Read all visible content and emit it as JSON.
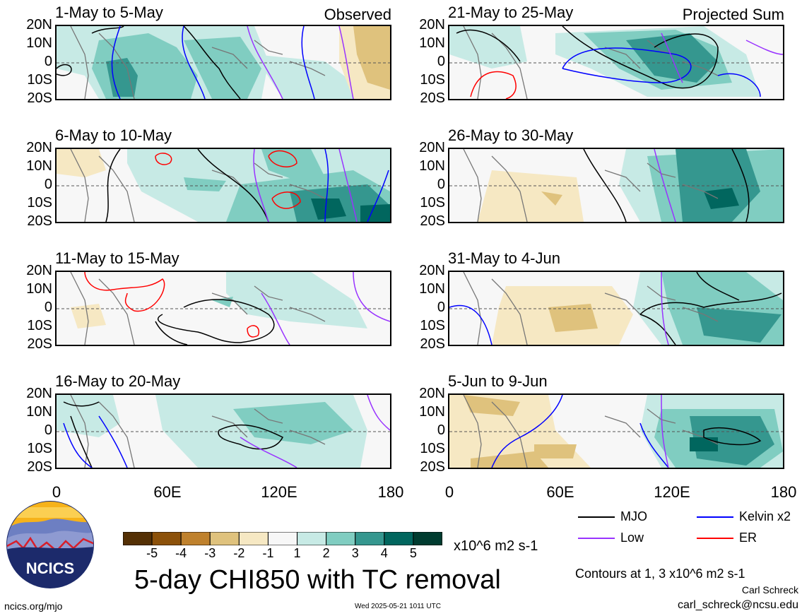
{
  "panels_left": [
    {
      "title": "1-May to 5-May",
      "tag": "Observed"
    },
    {
      "title": "6-May to 10-May",
      "tag": ""
    },
    {
      "title": "11-May to 15-May",
      "tag": ""
    },
    {
      "title": "16-May to 20-May",
      "tag": ""
    }
  ],
  "panels_right": [
    {
      "title": "21-May to 25-May",
      "tag": "Projected Sum"
    },
    {
      "title": "26-May to 30-May",
      "tag": ""
    },
    {
      "title": "31-May to 4-Jun",
      "tag": ""
    },
    {
      "title": "5-Jun to 9-Jun",
      "tag": ""
    }
  ],
  "lat_labels": [
    "20N",
    "10N",
    "0",
    "10S",
    "20S"
  ],
  "lon_labels": [
    "0",
    "60E",
    "120E",
    "180"
  ],
  "colorbar": {
    "colors": [
      "#543005",
      "#8c510a",
      "#bf812d",
      "#dfc27d",
      "#f6e8c3",
      "#f7f7f7",
      "#c7eae5",
      "#80cdc1",
      "#35978f",
      "#01665e",
      "#003c30"
    ],
    "ticks": [
      "-5",
      "-4",
      "-3",
      "-2",
      "-1",
      "1",
      "2",
      "3",
      "4",
      "5"
    ],
    "units": "x10^6 m2 s-1"
  },
  "legend": [
    {
      "label": "MJO",
      "color": "#000000"
    },
    {
      "label": "Kelvin x2",
      "color": "#0000ff"
    },
    {
      "label": "Low",
      "color": "#9933ff"
    },
    {
      "label": "ER",
      "color": "#ff0000"
    }
  ],
  "main_title": "5-day CHI850 with TC removal",
  "contours_note": "Contours at 1, 3 x10^6 m2 s-1",
  "author": "Carl Schreck",
  "email": "carl_schreck@ncsu.edu",
  "site": "ncics.org/mjo",
  "timestamp": "Wed 2025-05-21 1011 UTC",
  "logo_text": "NCICS",
  "chart_data": {
    "type": "heatmap",
    "title": "5-day CHI850 with TC removal",
    "variable": "CHI850 (850-hPa velocity potential), tropical cyclones removed",
    "units": "x10^6 m2 s-1",
    "longitude_range": [
      0,
      180
    ],
    "latitude_range": [
      -20,
      20
    ],
    "x_ticks": [
      "0",
      "60E",
      "120E",
      "180"
    ],
    "y_ticks": [
      "20N",
      "10N",
      "0",
      "10S",
      "20S"
    ],
    "color_levels": [
      -5,
      -4,
      -3,
      -2,
      -1,
      1,
      2,
      3,
      4,
      5
    ],
    "contour_levels": [
      1,
      3
    ],
    "contour_series": [
      "MJO",
      "Kelvin x2",
      "Low",
      "ER"
    ],
    "panels": [
      {
        "period": "1-May to 5-May",
        "type": "Observed"
      },
      {
        "period": "6-May to 10-May",
        "type": "Observed"
      },
      {
        "period": "11-May to 15-May",
        "type": "Observed"
      },
      {
        "period": "16-May to 20-May",
        "type": "Observed"
      },
      {
        "period": "21-May to 25-May",
        "type": "Projected Sum"
      },
      {
        "period": "26-May to 30-May",
        "type": "Projected Sum"
      },
      {
        "period": "31-May to 4-Jun",
        "type": "Projected Sum"
      },
      {
        "period": "5-Jun to 9-Jun",
        "type": "Projected Sum"
      }
    ]
  }
}
